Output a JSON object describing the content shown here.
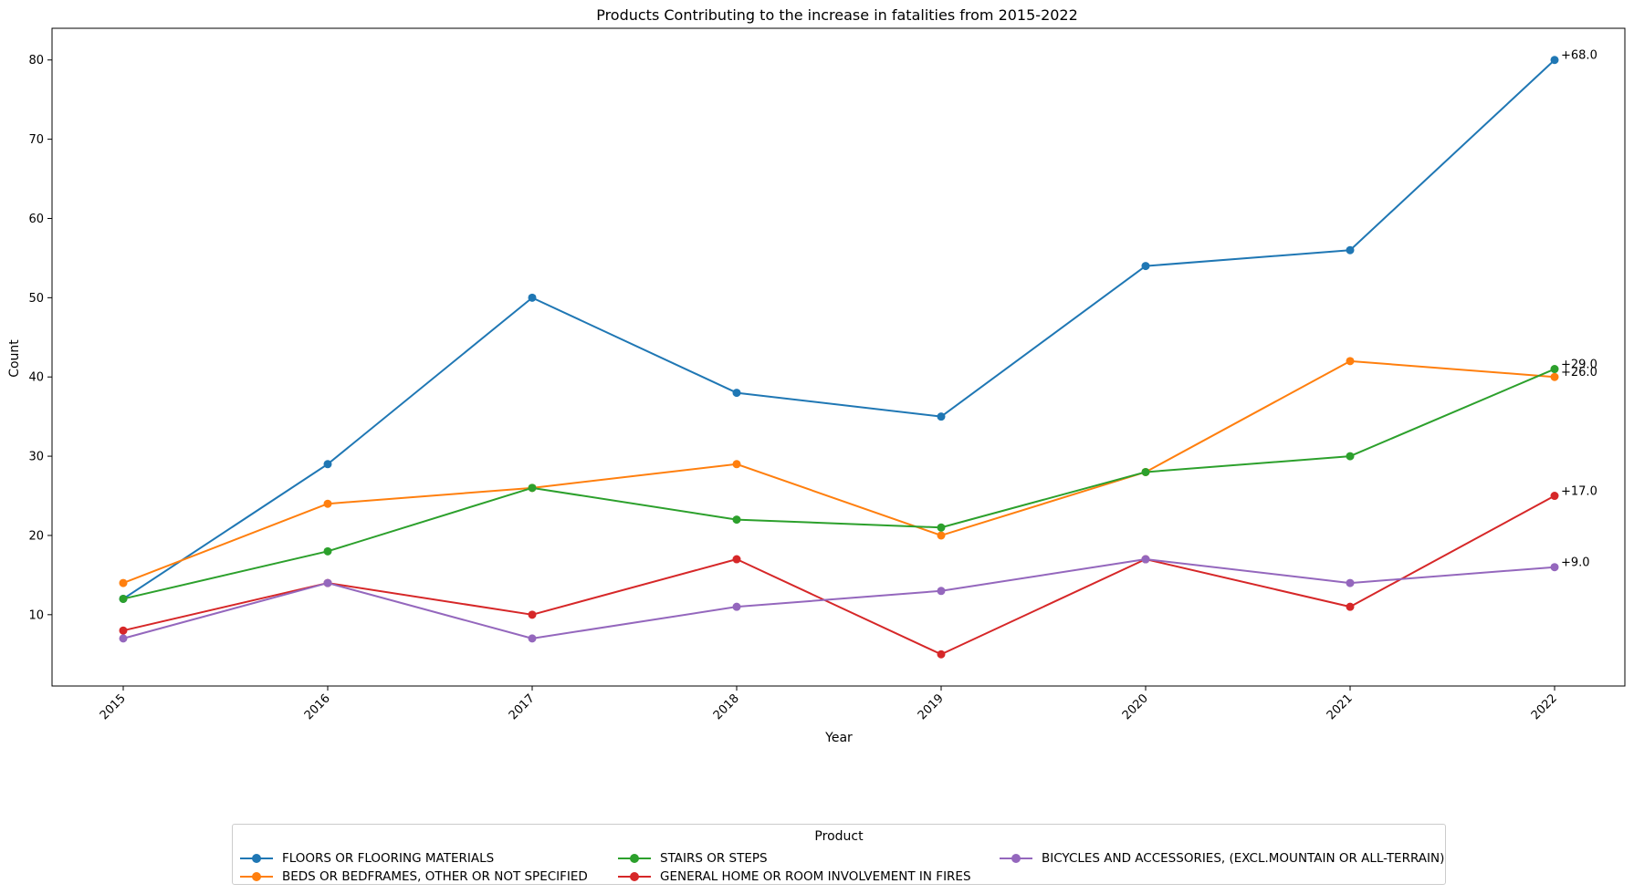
{
  "chart_data": {
    "type": "line",
    "title": "Products Contributing to the increase in fatalities from 2015-2022",
    "xlabel": "Year",
    "ylabel": "Count",
    "x": [
      "2015",
      "2016",
      "2017",
      "2018",
      "2019",
      "2020",
      "2021",
      "2022"
    ],
    "ylim": [
      1,
      84
    ],
    "yticks": [
      10,
      20,
      30,
      40,
      50,
      60,
      70,
      80
    ],
    "grid": false,
    "legend": {
      "title": "Product",
      "placement": "bottom-center"
    },
    "series": [
      {
        "name": "FLOORS OR FLOORING MATERIALS",
        "color": "#1f77b4",
        "values": [
          12,
          29,
          50,
          38,
          35,
          54,
          56,
          80
        ],
        "annotation": "+68.0"
      },
      {
        "name": "BEDS OR BEDFRAMES, OTHER OR NOT SPECIFIED",
        "color": "#ff7f0e",
        "values": [
          14,
          24,
          26,
          29,
          20,
          28,
          42,
          40
        ],
        "annotation": "+26.0"
      },
      {
        "name": "STAIRS OR STEPS",
        "color": "#2ca02c",
        "values": [
          12,
          18,
          26,
          22,
          21,
          28,
          30,
          41
        ],
        "annotation": "+29.0"
      },
      {
        "name": "GENERAL HOME OR ROOM INVOLVEMENT IN FIRES",
        "color": "#d62728",
        "values": [
          8,
          14,
          10,
          17,
          5,
          17,
          11,
          25
        ],
        "annotation": "+17.0"
      },
      {
        "name": "BICYCLES AND ACCESSORIES, (EXCL.MOUNTAIN OR ALL-TERRAIN)",
        "color": "#9467bd",
        "values": [
          7,
          14,
          7,
          11,
          13,
          17,
          14,
          16
        ],
        "annotation": "+9.0"
      }
    ]
  }
}
